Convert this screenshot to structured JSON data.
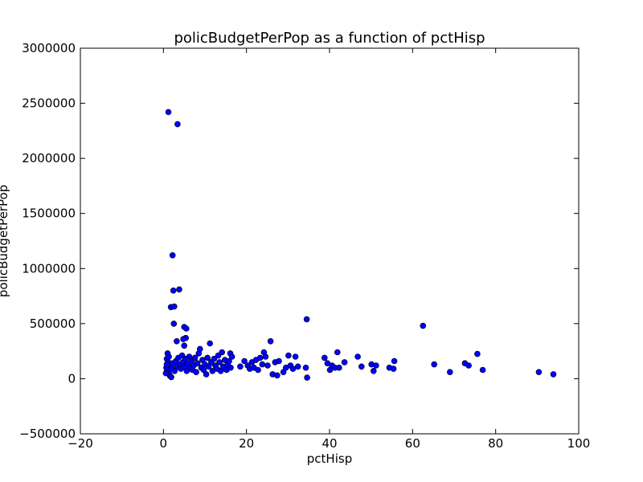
{
  "chart_data": {
    "type": "scatter",
    "title": "policBudgetPerPop as a function of pctHisp",
    "xlabel": "pctHisp",
    "ylabel": "policBudgetPerPop",
    "xlim": [
      -20,
      100
    ],
    "ylim": [
      -500000,
      3000000
    ],
    "xticks": [
      "−20",
      "0",
      "20",
      "40",
      "60",
      "80",
      "100"
    ],
    "yticks": [
      "−500000",
      "0",
      "500000",
      "1000000",
      "1500000",
      "2000000",
      "2500000",
      "3000000"
    ],
    "grid": false,
    "marker_color": "#0000ff",
    "marker_edge_color": "#000000",
    "points": [
      [
        1.2,
        2420000
      ],
      [
        3.4,
        2310000
      ],
      [
        2.2,
        1120000
      ],
      [
        2.4,
        800000
      ],
      [
        3.8,
        810000
      ],
      [
        1.8,
        650000
      ],
      [
        2.6,
        655000
      ],
      [
        2.5,
        500000
      ],
      [
        5.0,
        470000
      ],
      [
        5.5,
        455000
      ],
      [
        5.4,
        370000
      ],
      [
        4.8,
        360000
      ],
      [
        3.2,
        340000
      ],
      [
        5.0,
        300000
      ],
      [
        11.2,
        320000
      ],
      [
        1.0,
        230000
      ],
      [
        0.8,
        180000
      ],
      [
        1.2,
        150000
      ],
      [
        1.5,
        120000
      ],
      [
        0.7,
        100000
      ],
      [
        0.9,
        80000
      ],
      [
        1.1,
        60000
      ],
      [
        1.4,
        40000
      ],
      [
        1.6,
        25000
      ],
      [
        1.9,
        15000
      ],
      [
        0.6,
        50000
      ],
      [
        0.8,
        130000
      ],
      [
        1.3,
        200000
      ],
      [
        2.0,
        90000
      ],
      [
        2.3,
        140000
      ],
      [
        2.7,
        70000
      ],
      [
        3.0,
        160000
      ],
      [
        3.3,
        110000
      ],
      [
        3.6,
        190000
      ],
      [
        4.0,
        130000
      ],
      [
        4.2,
        90000
      ],
      [
        4.5,
        210000
      ],
      [
        4.7,
        150000
      ],
      [
        5.1,
        110000
      ],
      [
        5.3,
        180000
      ],
      [
        5.6,
        70000
      ],
      [
        5.9,
        140000
      ],
      [
        6.2,
        200000
      ],
      [
        6.5,
        100000
      ],
      [
        6.8,
        160000
      ],
      [
        7.0,
        80000
      ],
      [
        7.3,
        120000
      ],
      [
        7.6,
        190000
      ],
      [
        7.9,
        60000
      ],
      [
        8.2,
        140000
      ],
      [
        8.5,
        230000
      ],
      [
        8.8,
        270000
      ],
      [
        9.1,
        100000
      ],
      [
        9.4,
        170000
      ],
      [
        9.7,
        80000
      ],
      [
        10.0,
        130000
      ],
      [
        10.3,
        40000
      ],
      [
        10.6,
        190000
      ],
      [
        10.9,
        110000
      ],
      [
        11.5,
        150000
      ],
      [
        11.8,
        70000
      ],
      [
        12.2,
        180000
      ],
      [
        12.5,
        120000
      ],
      [
        12.9,
        90000
      ],
      [
        13.2,
        210000
      ],
      [
        13.5,
        150000
      ],
      [
        13.8,
        70000
      ],
      [
        14.1,
        240000
      ],
      [
        14.4,
        110000
      ],
      [
        14.8,
        170000
      ],
      [
        15.2,
        80000
      ],
      [
        15.5,
        130000
      ],
      [
        15.8,
        160000
      ],
      [
        16.1,
        230000
      ],
      [
        16.5,
        200000
      ],
      [
        16.2,
        100000
      ],
      [
        18.5,
        110000
      ],
      [
        19.5,
        160000
      ],
      [
        20.3,
        120000
      ],
      [
        20.8,
        90000
      ],
      [
        21.3,
        150000
      ],
      [
        21.8,
        100000
      ],
      [
        22.3,
        170000
      ],
      [
        22.8,
        80000
      ],
      [
        23.3,
        190000
      ],
      [
        23.8,
        130000
      ],
      [
        24.2,
        240000
      ],
      [
        24.6,
        200000
      ],
      [
        25.1,
        120000
      ],
      [
        25.8,
        340000
      ],
      [
        26.3,
        40000
      ],
      [
        26.9,
        150000
      ],
      [
        27.4,
        30000
      ],
      [
        27.8,
        160000
      ],
      [
        28.9,
        60000
      ],
      [
        29.5,
        100000
      ],
      [
        30.1,
        210000
      ],
      [
        30.6,
        120000
      ],
      [
        31.2,
        90000
      ],
      [
        31.8,
        200000
      ],
      [
        32.4,
        110000
      ],
      [
        34.5,
        540000
      ],
      [
        34.3,
        100000
      ],
      [
        34.6,
        10000
      ],
      [
        38.8,
        190000
      ],
      [
        39.5,
        140000
      ],
      [
        40.1,
        80000
      ],
      [
        40.6,
        120000
      ],
      [
        41.3,
        100000
      ],
      [
        41.9,
        240000
      ],
      [
        42.3,
        100000
      ],
      [
        43.6,
        150000
      ],
      [
        46.8,
        200000
      ],
      [
        47.7,
        110000
      ],
      [
        50.1,
        130000
      ],
      [
        50.6,
        70000
      ],
      [
        51.2,
        120000
      ],
      [
        54.4,
        100000
      ],
      [
        55.4,
        90000
      ],
      [
        55.6,
        160000
      ],
      [
        62.5,
        480000
      ],
      [
        65.2,
        130000
      ],
      [
        69.0,
        60000
      ],
      [
        72.6,
        140000
      ],
      [
        73.5,
        120000
      ],
      [
        75.6,
        225000
      ],
      [
        76.9,
        80000
      ],
      [
        90.4,
        60000
      ],
      [
        93.9,
        40000
      ]
    ]
  }
}
